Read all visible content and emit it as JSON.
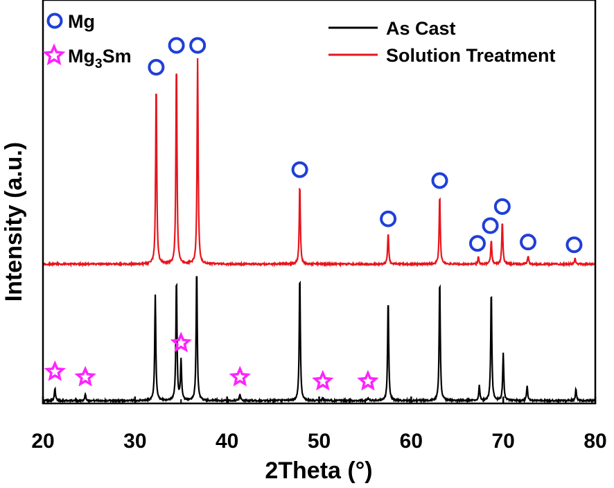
{
  "chart_data": {
    "type": "line",
    "xlabel": "2Theta (°)",
    "ylabel": "Intensity (a.u.)",
    "xlim": [
      20,
      80
    ],
    "x_ticks": [
      20,
      30,
      40,
      50,
      60,
      70,
      80
    ],
    "y_ticks_shown": false,
    "grid": false,
    "legend_placement": "top-right",
    "legend": [
      {
        "label": "As Cast",
        "color": "#000000"
      },
      {
        "label": "Solution Treatment",
        "color": "#e8141b"
      }
    ],
    "marker_legend": [
      {
        "label": "Mg",
        "symbol": "circle",
        "color": "#1f3fd6"
      },
      {
        "label_main": "Mg",
        "label_sub": "3",
        "label_tail": "Sm",
        "symbol": "star",
        "color": "#ff22ff"
      }
    ],
    "series": [
      {
        "name": "As Cast",
        "color": "#000000",
        "baseline": 0,
        "peaks": [
          {
            "x": 21.3,
            "h": 0.09
          },
          {
            "x": 24.6,
            "h": 0.05
          },
          {
            "x": 32.2,
            "h": 0.78
          },
          {
            "x": 34.5,
            "h": 0.9
          },
          {
            "x": 35.0,
            "h": 0.3
          },
          {
            "x": 36.7,
            "h": 0.98
          },
          {
            "x": 41.4,
            "h": 0.05
          },
          {
            "x": 47.9,
            "h": 0.93
          },
          {
            "x": 50.4,
            "h": 0.02
          },
          {
            "x": 55.3,
            "h": 0.02
          },
          {
            "x": 57.5,
            "h": 0.75
          },
          {
            "x": 63.1,
            "h": 0.9
          },
          {
            "x": 67.4,
            "h": 0.11
          },
          {
            "x": 68.7,
            "h": 0.82
          },
          {
            "x": 70.0,
            "h": 0.35
          },
          {
            "x": 72.6,
            "h": 0.11
          },
          {
            "x": 77.9,
            "h": 0.09
          }
        ]
      },
      {
        "name": "Solution Treatment",
        "color": "#e8141b",
        "baseline": 1,
        "peaks": [
          {
            "x": 32.3,
            "h": 1.34
          },
          {
            "x": 34.5,
            "h": 1.5
          },
          {
            "x": 36.8,
            "h": 1.5
          },
          {
            "x": 47.9,
            "h": 0.59
          },
          {
            "x": 57.5,
            "h": 0.23
          },
          {
            "x": 63.1,
            "h": 0.51
          },
          {
            "x": 67.3,
            "h": 0.05
          },
          {
            "x": 68.7,
            "h": 0.18
          },
          {
            "x": 69.9,
            "h": 0.32
          },
          {
            "x": 72.7,
            "h": 0.06
          },
          {
            "x": 77.8,
            "h": 0.04
          }
        ]
      }
    ],
    "phase_markers": {
      "Mg": [
        32.3,
        34.5,
        36.8,
        47.9,
        57.5,
        63.1,
        67.2,
        68.6,
        69.9,
        72.7,
        77.7
      ],
      "Mg3Sm": [
        21.3,
        24.6,
        35.0,
        41.4,
        50.4,
        55.3
      ]
    }
  }
}
